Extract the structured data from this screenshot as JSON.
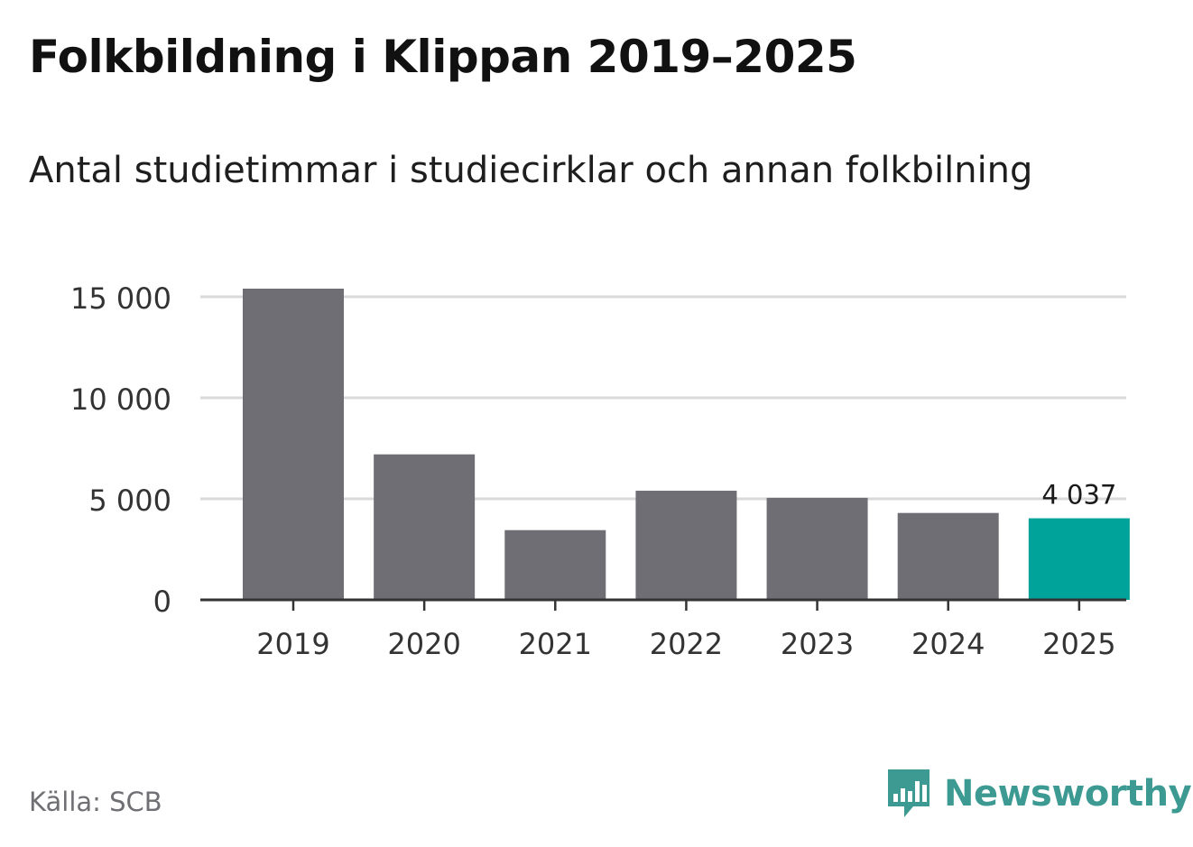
{
  "title": "Folkbildning i Klippan 2019–2025",
  "subtitle": "Antal studietimmar i studiecirklar och annan folkbilning",
  "source": "Källa: SCB",
  "brand": "Newsworthy",
  "colors": {
    "bar": "#6f6e74",
    "highlight": "#00a399",
    "grid": "#d9d9d9",
    "axis": "#333333",
    "brand": "#3d9a93"
  },
  "chart_data": {
    "type": "bar",
    "categories": [
      "2019",
      "2020",
      "2021",
      "2022",
      "2023",
      "2024",
      "2025"
    ],
    "values": [
      15400,
      7200,
      3450,
      5400,
      5050,
      4300,
      4037
    ],
    "highlight_index": 6,
    "data_labels": [
      {
        "index": 6,
        "text": "4 037"
      }
    ],
    "yticks": [
      0,
      5000,
      10000,
      15000
    ],
    "ytick_labels": [
      "0",
      "5 000",
      "10 000",
      "15 000"
    ],
    "ylim": [
      0,
      15400
    ],
    "grid": true,
    "xlabel": "",
    "ylabel": ""
  }
}
